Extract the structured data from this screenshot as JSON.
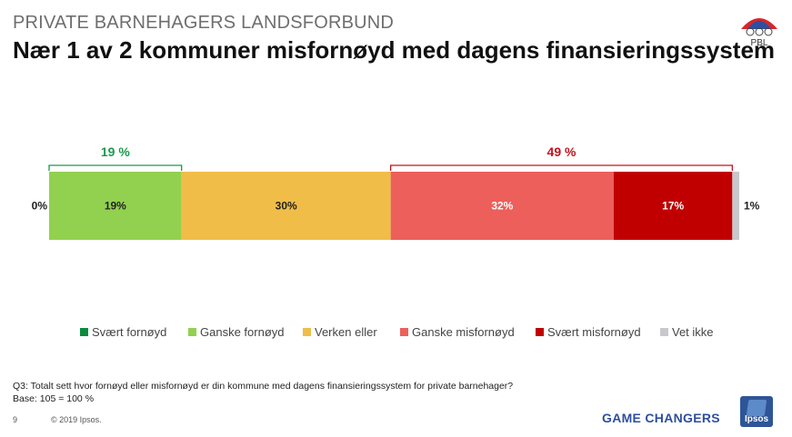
{
  "header": {
    "organization": "PRIVATE BARNEHAGERS LANDSFORBUND",
    "title": "Nær 1 av 2 kommuner misfornøyd med dagens finansieringssystem",
    "logo_text": "PBL"
  },
  "chart_data": {
    "type": "bar",
    "orientation": "horizontal-stacked",
    "categories": [
      ""
    ],
    "series": [
      {
        "name": "Svært fornøyd",
        "values": [
          0
        ],
        "label": "0%",
        "color": "#0a8a3c"
      },
      {
        "name": "Ganske fornøyd",
        "values": [
          19
        ],
        "label": "19%",
        "color": "#92d14f"
      },
      {
        "name": "Verken eller",
        "values": [
          30
        ],
        "label": "30%",
        "color": "#f0bd49"
      },
      {
        "name": "Ganske misfornøyd",
        "values": [
          32
        ],
        "label": "32%",
        "color": "#ec5f5b"
      },
      {
        "name": "Svært misfornøyd",
        "values": [
          17
        ],
        "label": "17%",
        "color": "#c00000"
      },
      {
        "name": "Vet ikke",
        "values": [
          1
        ],
        "label": "1%",
        "color": "#c8c8cc"
      }
    ],
    "brackets": [
      {
        "label": "19 %",
        "series_range": [
          0,
          1
        ],
        "color": "#1a9a4a"
      },
      {
        "label": "49 %",
        "series_range": [
          3,
          4
        ],
        "color": "#c0141c"
      }
    ],
    "legend_position": "bottom",
    "grid": false
  },
  "footer": {
    "question": "Q3: Totalt sett hvor fornøyd eller misfornøyd er din kommune med dagens finansieringssystem for private barnehager?",
    "base": "Base: 105 = 100 %",
    "page_number": "9",
    "copyright": "© 2019 Ipsos.",
    "tagline": "GAME CHANGERS",
    "brand": "Ipsos"
  }
}
